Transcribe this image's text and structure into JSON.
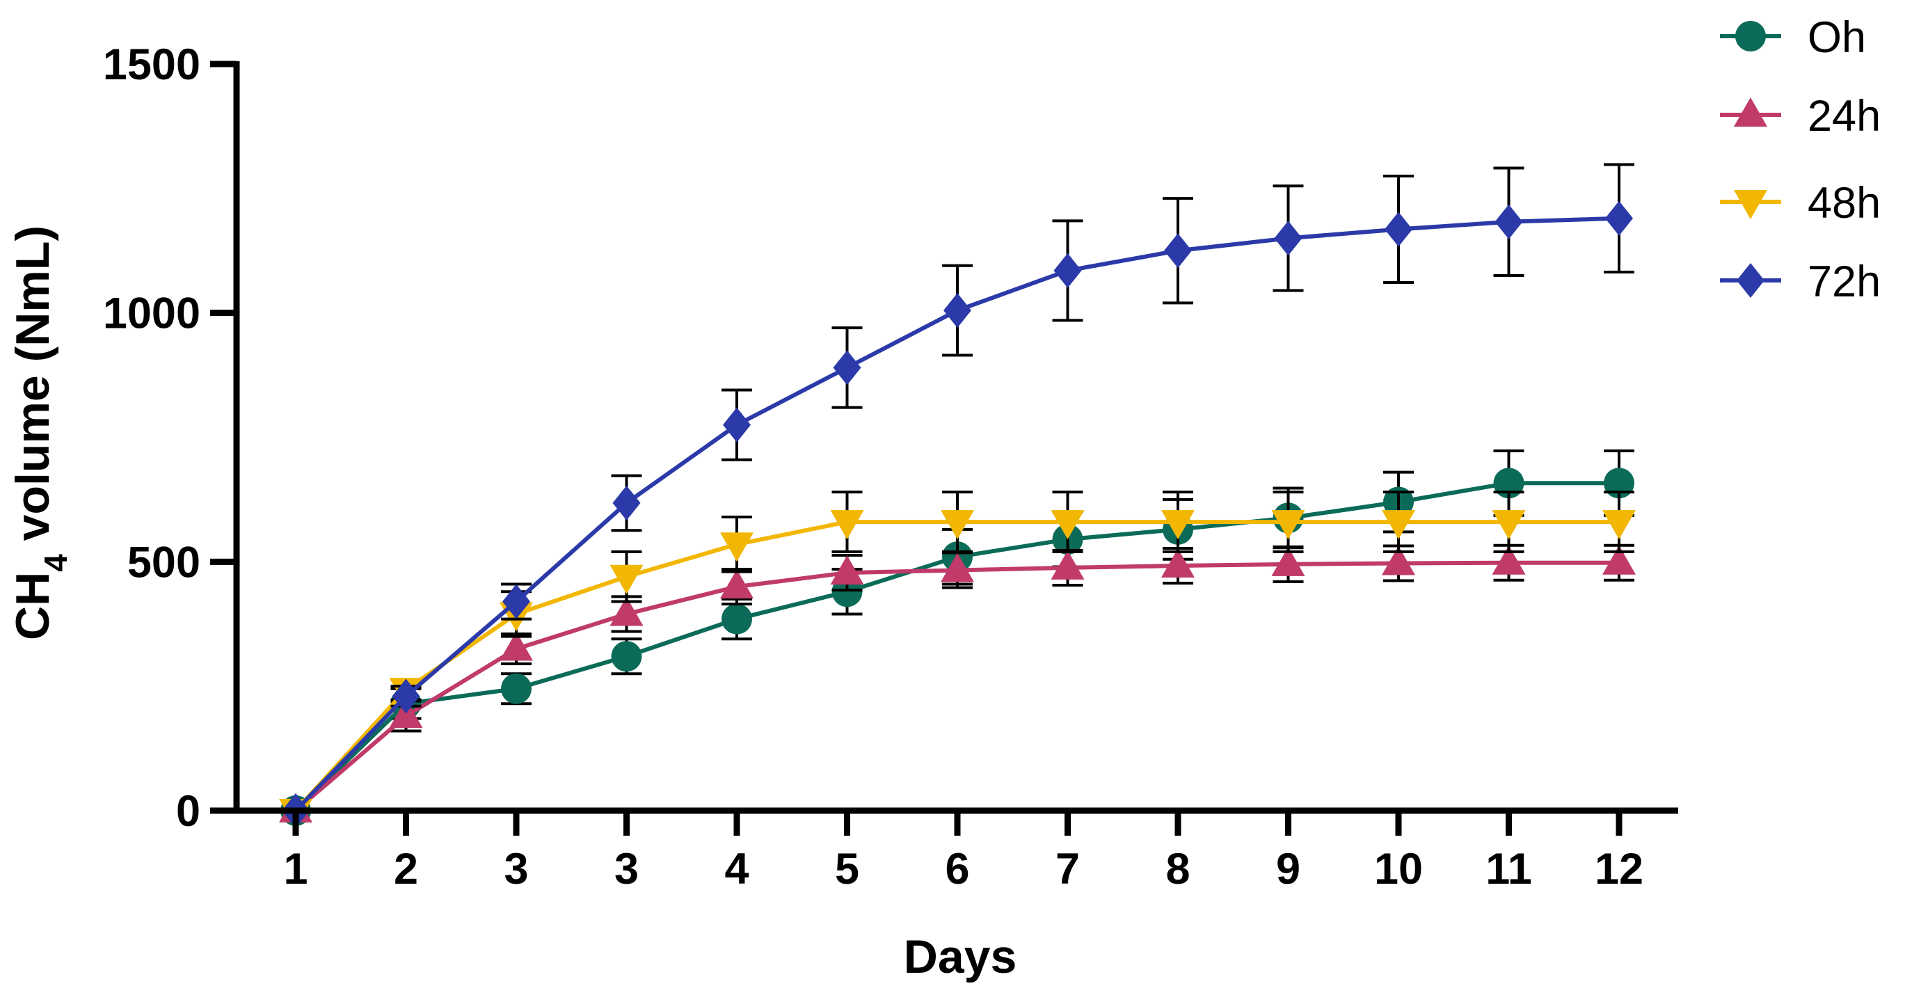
{
  "chart_data": {
    "type": "line",
    "title": "",
    "xlabel": "Days",
    "ylabel": {
      "prefix": "CH",
      "subscript": "4",
      "suffix": " volume (NmL)"
    },
    "categories": [
      "1",
      "2",
      "3",
      "3",
      "4",
      "5",
      "6",
      "7",
      "8",
      "9",
      "10",
      "11",
      "12"
    ],
    "ylim": [
      0,
      1500
    ],
    "yticks": [
      "0",
      "500",
      "1000",
      "1500"
    ],
    "legend_position": "top-right",
    "error_bar_color": "#000000",
    "series": [
      {
        "name": "Oh",
        "marker": "circle",
        "color": "#0b6b58",
        "values": [
          0,
          215,
          245,
          310,
          385,
          440,
          510,
          545,
          565,
          588,
          620,
          658,
          658
        ],
        "errors": [
          0,
          30,
          30,
          35,
          40,
          45,
          55,
          55,
          60,
          60,
          60,
          65,
          65
        ]
      },
      {
        "name": "24h",
        "marker": "triangle-up",
        "color": "#c03a6a",
        "values": [
          0,
          190,
          325,
          395,
          450,
          478,
          483,
          488,
          492,
          495,
          497,
          498,
          498
        ],
        "errors": [
          0,
          30,
          30,
          35,
          35,
          35,
          35,
          35,
          35,
          35,
          35,
          35,
          35
        ]
      },
      {
        "name": "48h",
        "marker": "triangle-down",
        "color": "#f2b705",
        "values": [
          0,
          243,
          395,
          470,
          535,
          580,
          580,
          580,
          580,
          580,
          580,
          580,
          580
        ],
        "errors": [
          0,
          20,
          45,
          50,
          55,
          60,
          60,
          60,
          60,
          60,
          60,
          60,
          60
        ]
      },
      {
        "name": "72h",
        "marker": "diamond",
        "color": "#2b3aa8",
        "values": [
          0,
          230,
          420,
          618,
          775,
          890,
          1005,
          1085,
          1125,
          1150,
          1168,
          1183,
          1190
        ],
        "errors": [
          0,
          20,
          35,
          55,
          70,
          80,
          90,
          100,
          105,
          105,
          107,
          108,
          108
        ]
      }
    ]
  }
}
